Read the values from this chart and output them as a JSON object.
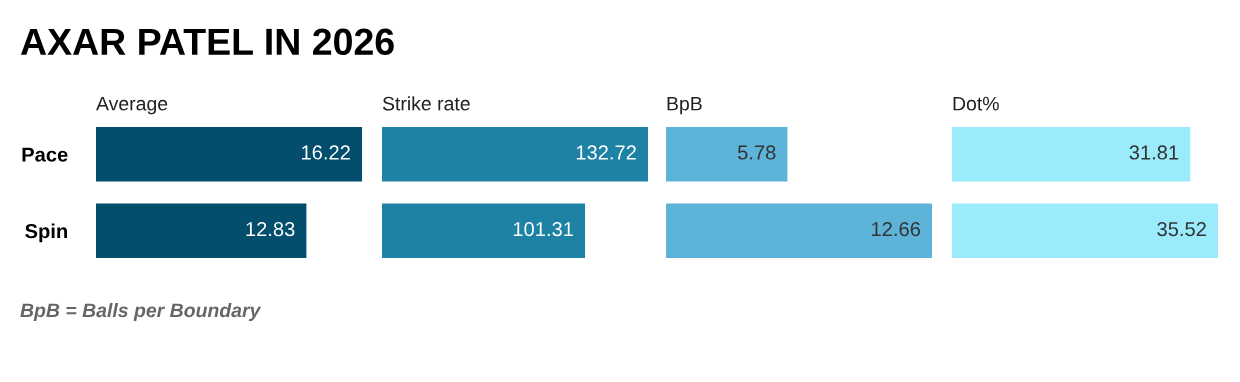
{
  "chart_data": [
    {
      "type": "bar",
      "orientation": "horizontal",
      "title": "AXAR PATEL IN 2026",
      "xlabel": "Average",
      "categories": [
        "Pace",
        "Spin"
      ],
      "values": [
        16.22,
        12.83
      ],
      "color": "#024e6c",
      "xlim": [
        0,
        16.22
      ],
      "data_labels": true,
      "tick_labels": "y",
      "grid": false,
      "legend": false,
      "annotations": [
        "BpB = Balls per Boundary"
      ]
    },
    {
      "type": "bar",
      "orientation": "horizontal",
      "xlabel": "Strike rate",
      "categories": [
        null,
        null
      ],
      "values": [
        132.72,
        101.31
      ],
      "color": "#1e82a4",
      "xlim": [
        0,
        132.72
      ],
      "data_labels": true,
      "grid": false,
      "legend": false
    },
    {
      "type": "bar",
      "orientation": "horizontal",
      "xlabel": "BpB",
      "categories": [
        null,
        null
      ],
      "values": [
        5.78,
        12.66
      ],
      "color": "#5eb4d8",
      "xlim": [
        0,
        12.66
      ],
      "data_labels": true,
      "grid": false,
      "legend": false
    },
    {
      "type": "bar",
      "orientation": "horizontal",
      "xlabel": "Dot%",
      "categories": [
        null,
        null
      ],
      "values": [
        31.81,
        35.52
      ],
      "color": "#9aebfc",
      "xlim": [
        0,
        35.52
      ],
      "data_labels": true,
      "grid": false,
      "legend": false
    }
  ]
}
